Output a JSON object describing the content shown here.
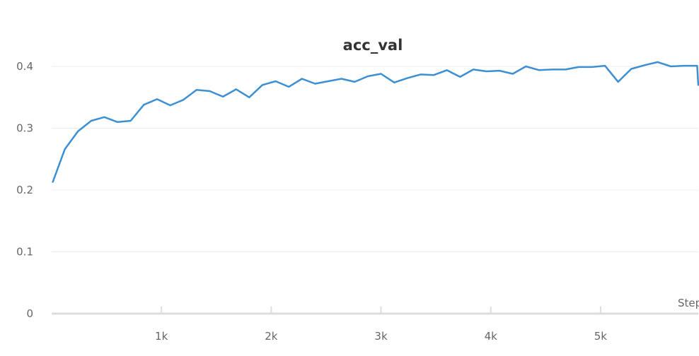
{
  "chart_data": {
    "type": "line",
    "title": "acc_val",
    "xlabel": "Step",
    "ylabel": "",
    "xlim": [
      0,
      5890
    ],
    "ylim": [
      0,
      0.4
    ],
    "grid": true,
    "legend": "none",
    "x_ticks": [
      {
        "value": 1000,
        "label": "1k"
      },
      {
        "value": 2000,
        "label": "2k"
      },
      {
        "value": 3000,
        "label": "3k"
      },
      {
        "value": 4000,
        "label": "4k"
      },
      {
        "value": 5000,
        "label": "5k"
      }
    ],
    "y_ticks": [
      {
        "value": 0,
        "label": "0"
      },
      {
        "value": 0.1,
        "label": "0.1"
      },
      {
        "value": 0.2,
        "label": "0.2"
      },
      {
        "value": 0.3,
        "label": "0.3"
      },
      {
        "value": 0.4,
        "label": "0.4"
      }
    ],
    "colors": {
      "series": "#3d8fd4"
    },
    "series": [
      {
        "x": [
          10,
          120,
          240,
          360,
          480,
          600,
          720,
          840,
          960,
          1080,
          1200,
          1320,
          1440,
          1560,
          1680,
          1800,
          1920,
          2040,
          2160,
          2280,
          2400,
          2520,
          2640,
          2760,
          2880,
          3000,
          3120,
          3240,
          3360,
          3480,
          3600,
          3720,
          3840,
          3960,
          4080,
          4200,
          4320,
          4440,
          4560,
          4680,
          4800,
          4920,
          5040,
          5160,
          5280,
          5400,
          5520,
          5640,
          5760,
          5880,
          5890
        ],
        "y": [
          0.213,
          0.266,
          0.295,
          0.312,
          0.318,
          0.31,
          0.312,
          0.338,
          0.347,
          0.337,
          0.346,
          0.362,
          0.36,
          0.351,
          0.363,
          0.35,
          0.37,
          0.376,
          0.367,
          0.38,
          0.372,
          0.376,
          0.38,
          0.375,
          0.384,
          0.388,
          0.374,
          0.381,
          0.387,
          0.386,
          0.394,
          0.383,
          0.395,
          0.392,
          0.393,
          0.388,
          0.4,
          0.394,
          0.395,
          0.395,
          0.399,
          0.399,
          0.401,
          0.375,
          0.396,
          0.402,
          0.407,
          0.4,
          0.401,
          0.401,
          0.37
        ]
      }
    ]
  }
}
